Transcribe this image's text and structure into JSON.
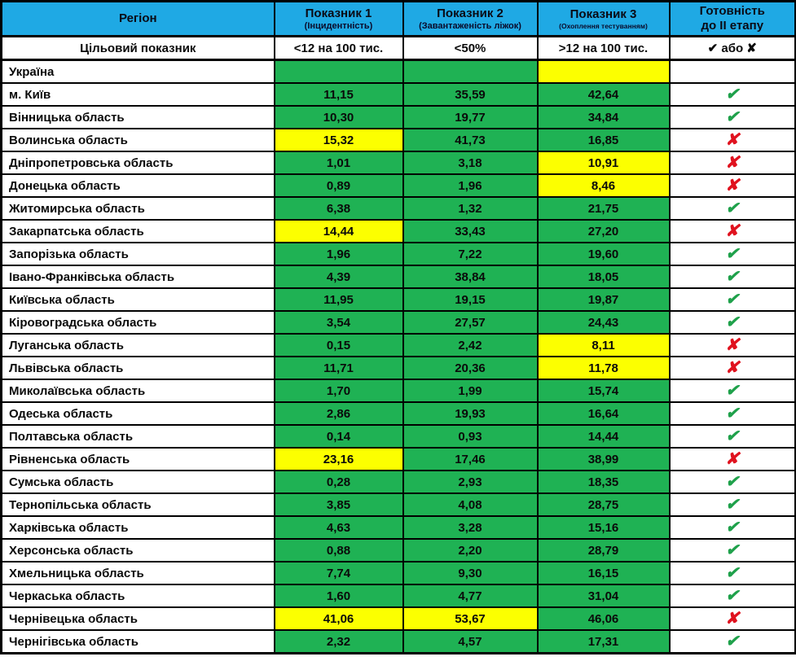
{
  "colors": {
    "header_blue": "#1FA9E4",
    "cell_green": "#1FB254",
    "cell_yellow": "#FCFF00",
    "cell_gray": "#C9C9C9",
    "check_green": "#1FA14B",
    "cross_red": "#E0121F",
    "border_black": "#000000"
  },
  "status_glyphs": {
    "check": "✔",
    "cross": "✘"
  },
  "header": {
    "columns": [
      {
        "label": "Регіон",
        "sub": ""
      },
      {
        "label": "Показник 1",
        "sub": "(Інцидентність)"
      },
      {
        "label": "Показник 2",
        "sub": "(Завантаженість ліжок)"
      },
      {
        "label": "Показник 3",
        "sub": "(Охоплення тестуванням)"
      },
      {
        "label": "Готовність",
        "sub": "до II етапу"
      }
    ]
  },
  "target_row": {
    "label": "Цільовий показник",
    "values": [
      "<12 на 100 тис.",
      "<50%",
      ">12 на 100 тис.",
      "✔ або ✘"
    ]
  },
  "rows": [
    {
      "region": "Україна",
      "cells": [
        {
          "value": "",
          "bg": "green"
        },
        {
          "value": "",
          "bg": "green"
        },
        {
          "value": "",
          "bg": "yellow"
        }
      ],
      "status": "none",
      "status_bg": "gray"
    },
    {
      "region": "м. Київ",
      "cells": [
        {
          "value": "11,15",
          "bg": "green"
        },
        {
          "value": "35,59",
          "bg": "green"
        },
        {
          "value": "42,64",
          "bg": "green"
        }
      ],
      "status": "check",
      "status_bg": "white"
    },
    {
      "region": "Вінницька область",
      "cells": [
        {
          "value": "10,30",
          "bg": "green"
        },
        {
          "value": "19,77",
          "bg": "green"
        },
        {
          "value": "34,84",
          "bg": "green"
        }
      ],
      "status": "check",
      "status_bg": "white"
    },
    {
      "region": "Волинська область",
      "cells": [
        {
          "value": "15,32",
          "bg": "yellow"
        },
        {
          "value": "41,73",
          "bg": "green"
        },
        {
          "value": "16,85",
          "bg": "green"
        }
      ],
      "status": "cross",
      "status_bg": "white"
    },
    {
      "region": "Дніпропетровська область",
      "cells": [
        {
          "value": "1,01",
          "bg": "green"
        },
        {
          "value": "3,18",
          "bg": "green"
        },
        {
          "value": "10,91",
          "bg": "yellow"
        }
      ],
      "status": "cross",
      "status_bg": "white"
    },
    {
      "region": "Донецька область",
      "cells": [
        {
          "value": "0,89",
          "bg": "green"
        },
        {
          "value": "1,96",
          "bg": "green"
        },
        {
          "value": "8,46",
          "bg": "yellow"
        }
      ],
      "status": "cross",
      "status_bg": "white"
    },
    {
      "region": "Житомирська область",
      "cells": [
        {
          "value": "6,38",
          "bg": "green"
        },
        {
          "value": "1,32",
          "bg": "green"
        },
        {
          "value": "21,75",
          "bg": "green"
        }
      ],
      "status": "check",
      "status_bg": "white"
    },
    {
      "region": "Закарпатська область",
      "cells": [
        {
          "value": "14,44",
          "bg": "yellow"
        },
        {
          "value": "33,43",
          "bg": "green"
        },
        {
          "value": "27,20",
          "bg": "green"
        }
      ],
      "status": "cross",
      "status_bg": "white"
    },
    {
      "region": "Запорізька область",
      "cells": [
        {
          "value": "1,96",
          "bg": "green"
        },
        {
          "value": "7,22",
          "bg": "green"
        },
        {
          "value": "19,60",
          "bg": "green"
        }
      ],
      "status": "check",
      "status_bg": "white"
    },
    {
      "region": "Івано-Франківська область",
      "cells": [
        {
          "value": "4,39",
          "bg": "green"
        },
        {
          "value": "38,84",
          "bg": "green"
        },
        {
          "value": "18,05",
          "bg": "green"
        }
      ],
      "status": "check",
      "status_bg": "white"
    },
    {
      "region": "Київська область",
      "cells": [
        {
          "value": "11,95",
          "bg": "green"
        },
        {
          "value": "19,15",
          "bg": "green"
        },
        {
          "value": "19,87",
          "bg": "green"
        }
      ],
      "status": "check",
      "status_bg": "white"
    },
    {
      "region": "Кіровоградська область",
      "cells": [
        {
          "value": "3,54",
          "bg": "green"
        },
        {
          "value": "27,57",
          "bg": "green"
        },
        {
          "value": "24,43",
          "bg": "green"
        }
      ],
      "status": "check",
      "status_bg": "white"
    },
    {
      "region": "Луганська область",
      "cells": [
        {
          "value": "0,15",
          "bg": "green"
        },
        {
          "value": "2,42",
          "bg": "green"
        },
        {
          "value": "8,11",
          "bg": "yellow"
        }
      ],
      "status": "cross",
      "status_bg": "white"
    },
    {
      "region": "Львівська область",
      "cells": [
        {
          "value": "11,71",
          "bg": "green"
        },
        {
          "value": "20,36",
          "bg": "green"
        },
        {
          "value": "11,78",
          "bg": "yellow"
        }
      ],
      "status": "cross",
      "status_bg": "white"
    },
    {
      "region": "Миколаївська область",
      "cells": [
        {
          "value": "1,70",
          "bg": "green"
        },
        {
          "value": "1,99",
          "bg": "green"
        },
        {
          "value": "15,74",
          "bg": "green"
        }
      ],
      "status": "check",
      "status_bg": "white"
    },
    {
      "region": "Одеська область",
      "cells": [
        {
          "value": "2,86",
          "bg": "green"
        },
        {
          "value": "19,93",
          "bg": "green"
        },
        {
          "value": "16,64",
          "bg": "green"
        }
      ],
      "status": "check",
      "status_bg": "white"
    },
    {
      "region": "Полтавська область",
      "cells": [
        {
          "value": "0,14",
          "bg": "green"
        },
        {
          "value": "0,93",
          "bg": "green"
        },
        {
          "value": "14,44",
          "bg": "green"
        }
      ],
      "status": "check",
      "status_bg": "white"
    },
    {
      "region": "Рівненська область",
      "cells": [
        {
          "value": "23,16",
          "bg": "yellow"
        },
        {
          "value": "17,46",
          "bg": "green"
        },
        {
          "value": "38,99",
          "bg": "green"
        }
      ],
      "status": "cross",
      "status_bg": "white"
    },
    {
      "region": "Сумська область",
      "cells": [
        {
          "value": "0,28",
          "bg": "green"
        },
        {
          "value": "2,93",
          "bg": "green"
        },
        {
          "value": "18,35",
          "bg": "green"
        }
      ],
      "status": "check",
      "status_bg": "white"
    },
    {
      "region": "Тернопільська область",
      "cells": [
        {
          "value": "3,85",
          "bg": "green"
        },
        {
          "value": "4,08",
          "bg": "green"
        },
        {
          "value": "28,75",
          "bg": "green"
        }
      ],
      "status": "check",
      "status_bg": "white"
    },
    {
      "region": "Харківська область",
      "cells": [
        {
          "value": "4,63",
          "bg": "green"
        },
        {
          "value": "3,28",
          "bg": "green"
        },
        {
          "value": "15,16",
          "bg": "green"
        }
      ],
      "status": "check",
      "status_bg": "white"
    },
    {
      "region": "Херсонська область",
      "cells": [
        {
          "value": "0,88",
          "bg": "green"
        },
        {
          "value": "2,20",
          "bg": "green"
        },
        {
          "value": "28,79",
          "bg": "green"
        }
      ],
      "status": "check",
      "status_bg": "white"
    },
    {
      "region": "Хмельницька область",
      "cells": [
        {
          "value": "7,74",
          "bg": "green"
        },
        {
          "value": "9,30",
          "bg": "green"
        },
        {
          "value": "16,15",
          "bg": "green"
        }
      ],
      "status": "check",
      "status_bg": "white"
    },
    {
      "region": "Черкаська область",
      "cells": [
        {
          "value": "1,60",
          "bg": "green"
        },
        {
          "value": "4,77",
          "bg": "green"
        },
        {
          "value": "31,04",
          "bg": "green"
        }
      ],
      "status": "check",
      "status_bg": "white"
    },
    {
      "region": "Чернівецька область",
      "cells": [
        {
          "value": "41,06",
          "bg": "yellow"
        },
        {
          "value": "53,67",
          "bg": "yellow"
        },
        {
          "value": "46,06",
          "bg": "green"
        }
      ],
      "status": "cross",
      "status_bg": "white"
    },
    {
      "region": "Чернігівська область",
      "cells": [
        {
          "value": "2,32",
          "bg": "green"
        },
        {
          "value": "4,57",
          "bg": "green"
        },
        {
          "value": "17,31",
          "bg": "green"
        }
      ],
      "status": "check",
      "status_bg": "white"
    }
  ]
}
